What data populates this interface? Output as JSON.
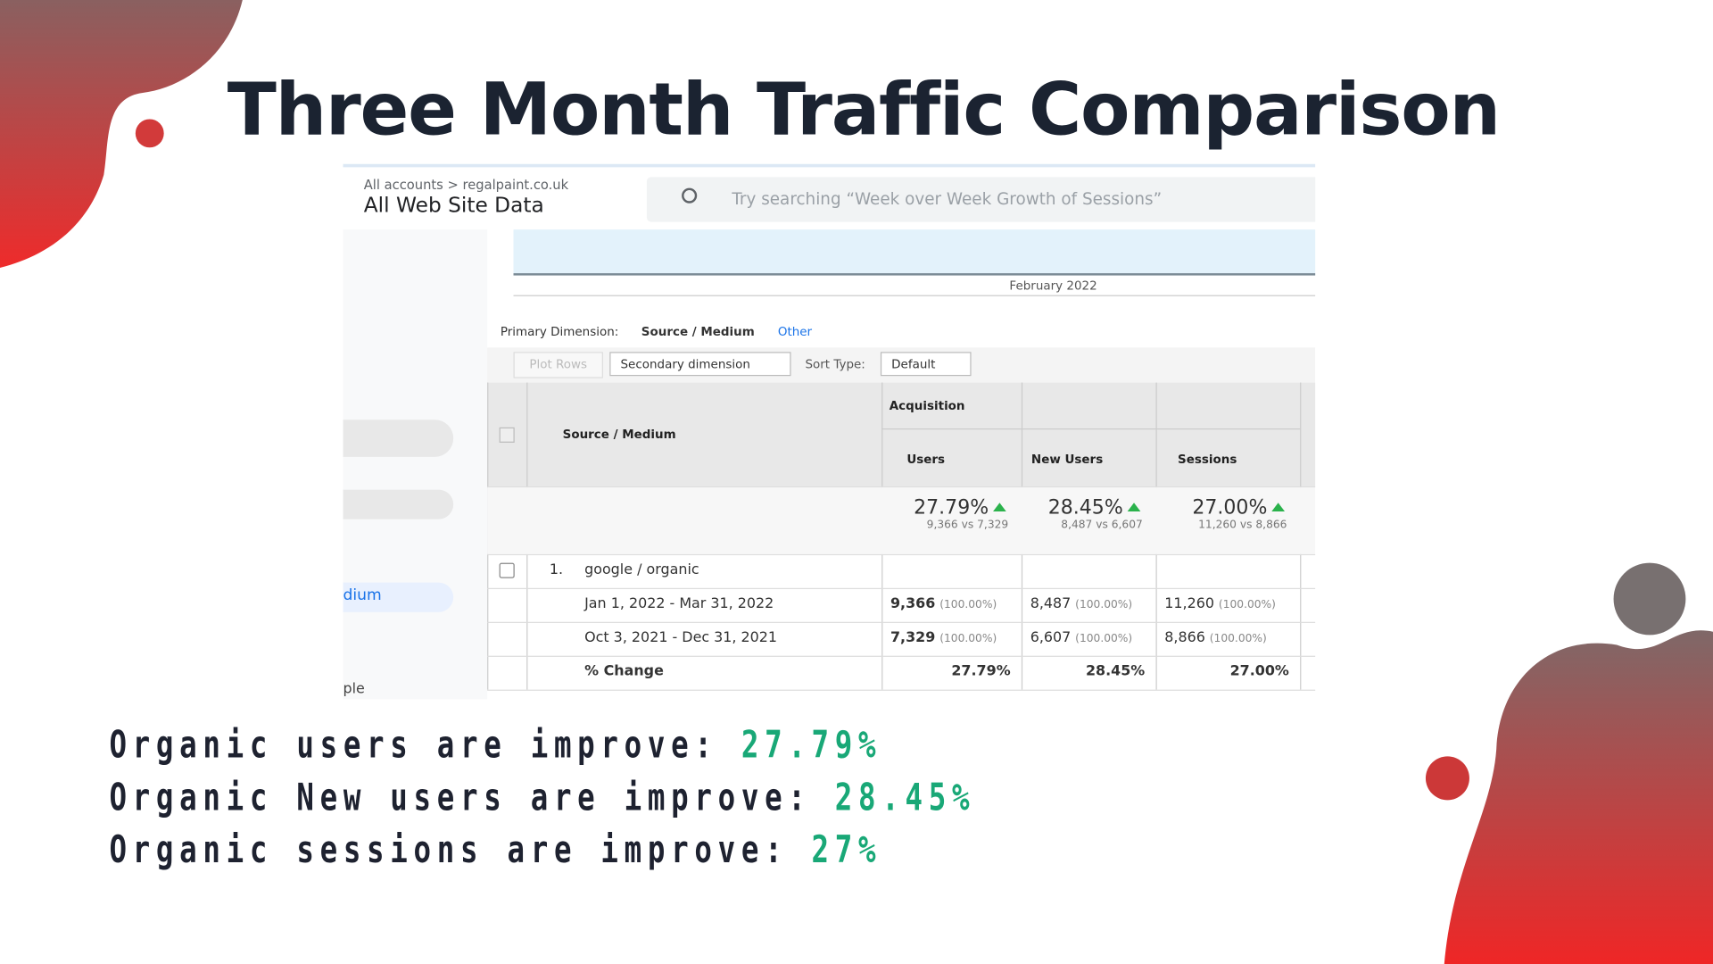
{
  "title": "Three Month Traffic Comparison",
  "ga": {
    "breadcrumb": "All accounts > regalpaint.co.uk",
    "view": "All Web Site Data",
    "search": "Try searching “Week over Week Growth of Sessions”",
    "chart_axis_label": "February 2022",
    "sidebar": [
      "dium",
      "ple"
    ],
    "primary_dimension_label": "Primary Dimension:",
    "primary_dimension": "Source / Medium",
    "other": "Other",
    "plot_rows": "Plot Rows",
    "secondary_dimension": "Secondary dimension",
    "sort_type": "Sort Type:",
    "sort_default": "Default",
    "table": {
      "group": "Acquisition",
      "dimension": "Source / Medium",
      "columns": [
        "Users",
        "New Users",
        "Sessions"
      ],
      "summary": [
        {
          "change": "27.79%",
          "compare": "9,366 vs 7,329"
        },
        {
          "change": "28.45%",
          "compare": "8,487 vs 6,607"
        },
        {
          "change": "27.00%",
          "compare": "11,260 vs 8,866"
        }
      ],
      "row": {
        "index": "1.",
        "label": "google / organic"
      },
      "periods": [
        {
          "label": "Jan 1, 2022 - Mar 31, 2022",
          "cells": [
            [
              "9,366",
              "(100.00%)"
            ],
            [
              "8,487",
              "(100.00%)"
            ],
            [
              "11,260",
              "(100.00%)"
            ]
          ]
        },
        {
          "label": "Oct 3, 2021 - Dec 31, 2021",
          "cells": [
            [
              "7,329",
              "(100.00%)"
            ],
            [
              "6,607",
              "(100.00%)"
            ],
            [
              "8,866",
              "(100.00%)"
            ]
          ]
        }
      ],
      "change_label": "% Change",
      "change": [
        "27.79%",
        "28.45%",
        "27.00%"
      ]
    }
  },
  "statements": [
    {
      "text": "Organic users are improve:",
      "value": "27.79%"
    },
    {
      "text": "Organic New users are improve:",
      "value": "28.45%"
    },
    {
      "text": "Organic sessions are improve:",
      "value": "27%"
    }
  ]
}
